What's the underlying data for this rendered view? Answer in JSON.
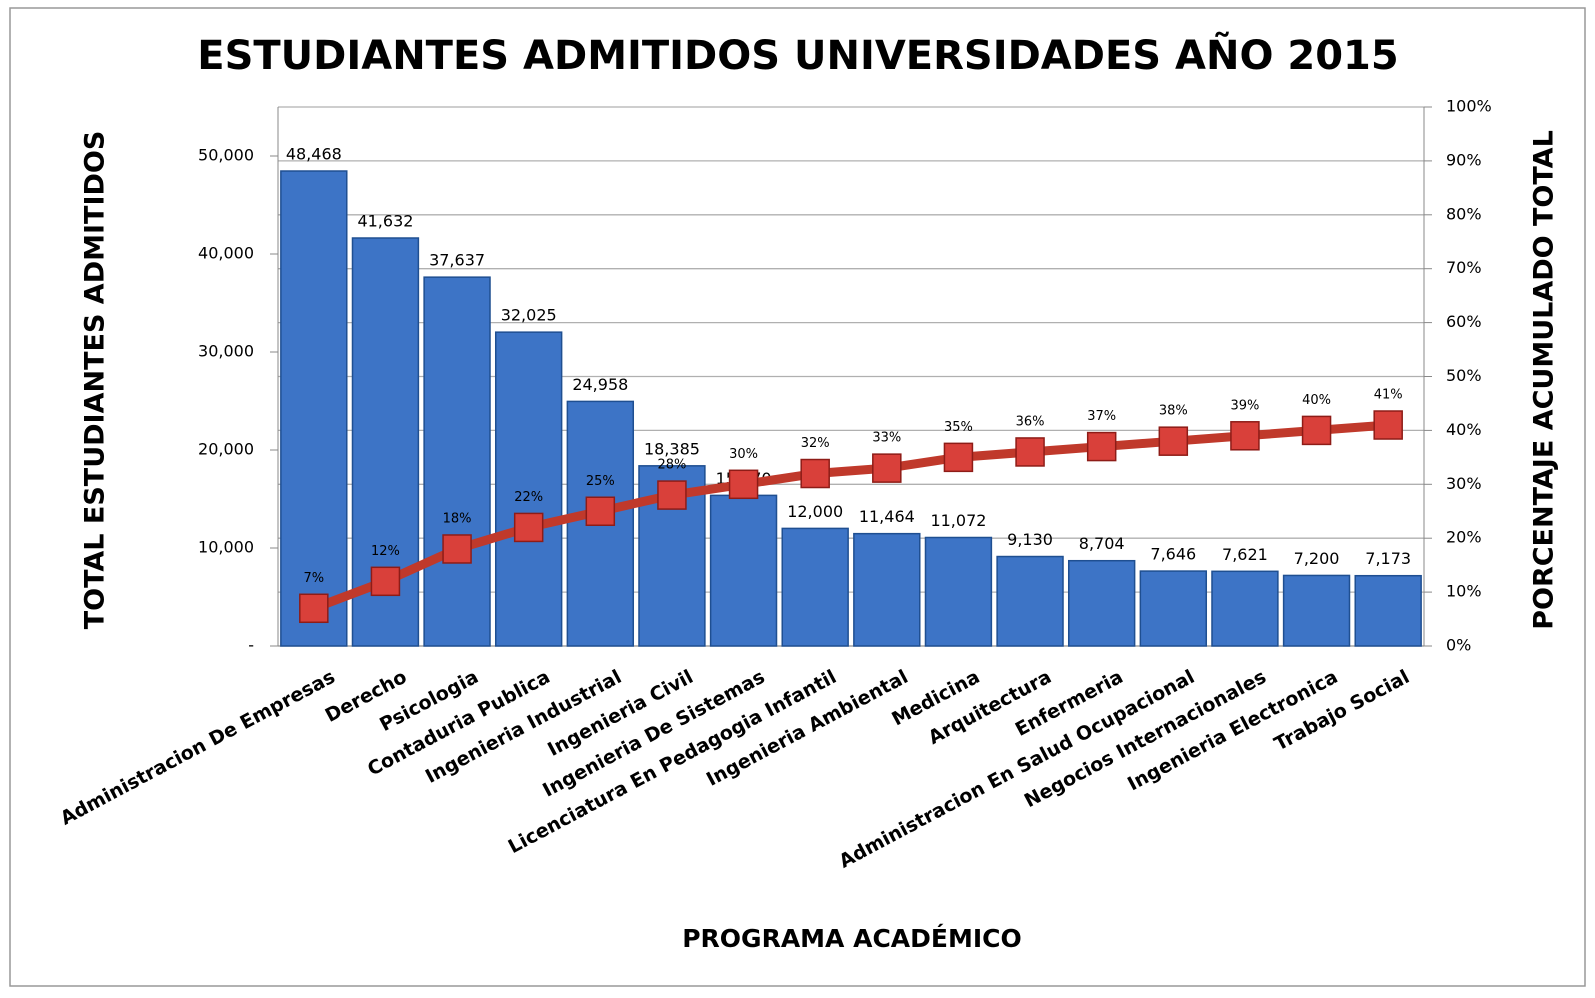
{
  "chart_data": {
    "type": "bar",
    "title": "ESTUDIANTES ADMITIDOS UNIVERSIDADES AÑO 2015",
    "y_label": "TOTAL  ESTUDIANTES  ADMITIDOS",
    "y2_label": "PORCENTAJE  ACUMULADO TOTAL",
    "x_label": "PROGRAMA ACADÉMICO",
    "categories": [
      "Administracion De Empresas",
      "Derecho",
      "Psicologia",
      "Contaduria Publica",
      "Ingenieria Industrial",
      "Ingenieria Civil",
      "Ingenieria De Sistemas",
      "Licenciatura En Pedagogia Infantil",
      "Ingenieria Ambiental",
      "Medicina",
      "Arquitectura",
      "Enfermeria",
      "Administracion En Salud Ocupacional",
      "Negocios Internacionales",
      "Ingenieria Electronica",
      "Trabajo Social"
    ],
    "series": [
      {
        "type": "bar",
        "color": "#3d74c6",
        "values": [
          48468,
          41632,
          37637,
          32025,
          24958,
          18385,
          15370,
          12000,
          11464,
          11072,
          9130,
          8704,
          7646,
          7621,
          7200,
          7173
        ],
        "value_labels": [
          "48,468",
          "41,632",
          "37,637",
          "32,025",
          "24,958",
          "18,385",
          "15,370",
          "12,000",
          "11,464",
          "11,072",
          "9,130",
          "8,704",
          "7,646",
          "7,621",
          "7,200",
          "7,173"
        ]
      },
      {
        "type": "line",
        "axis": "y2",
        "color": "#c0392b",
        "values": [
          7,
          12,
          18,
          22,
          25,
          28,
          30,
          32,
          33,
          35,
          36,
          37,
          38,
          39,
          40,
          41
        ],
        "value_labels": [
          "7%",
          "12%",
          "18%",
          "22%",
          "25%",
          "28%",
          "30%",
          "32%",
          "33%",
          "35%",
          "36%",
          "37%",
          "38%",
          "39%",
          "40%",
          "41%"
        ]
      }
    ],
    "ylim": [
      0,
      55000
    ],
    "yticks": [
      {
        "value": 0,
        "label": "-"
      },
      {
        "value": 10000,
        "label": "10,000"
      },
      {
        "value": 20000,
        "label": "20,000"
      },
      {
        "value": 30000,
        "label": "30,000"
      },
      {
        "value": 40000,
        "label": "40,000"
      },
      {
        "value": 50000,
        "label": "50,000"
      }
    ],
    "y2lim": [
      0,
      100
    ],
    "y2ticks": [
      {
        "value": 0,
        "label": "0%"
      },
      {
        "value": 10,
        "label": "10%"
      },
      {
        "value": 20,
        "label": "20%"
      },
      {
        "value": 30,
        "label": "30%"
      },
      {
        "value": 40,
        "label": "40%"
      },
      {
        "value": 50,
        "label": "50%"
      },
      {
        "value": 60,
        "label": "60%"
      },
      {
        "value": 70,
        "label": "70%"
      },
      {
        "value": 80,
        "label": "80%"
      },
      {
        "value": 90,
        "label": "90%"
      },
      {
        "value": 100,
        "label": "100%"
      }
    ],
    "grid": true
  }
}
